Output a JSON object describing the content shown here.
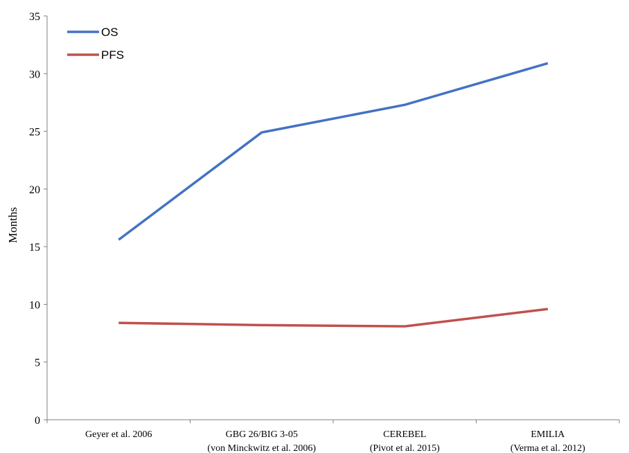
{
  "chart_data": {
    "type": "line",
    "categories": [
      [
        "Geyer et al. 2006"
      ],
      [
        "GBG 26/BIG 3-05",
        "(von Minckwitz et al. 2006)"
      ],
      [
        "CEREBEL",
        "(Pivot et al. 2015)"
      ],
      [
        "EMILIA",
        "(Verma et al. 2012)"
      ]
    ],
    "series": [
      {
        "name": "OS",
        "values": [
          15.6,
          24.9,
          27.3,
          30.9
        ],
        "color": "#4472C4"
      },
      {
        "name": "PFS",
        "values": [
          8.4,
          8.2,
          8.1,
          9.6
        ],
        "color": "#C0504D"
      }
    ],
    "ylabel": "Months",
    "ylim": [
      0,
      35
    ],
    "yticks": [
      0,
      5,
      10,
      15,
      20,
      25,
      30,
      35
    ],
    "legend_position": "top-left",
    "grid": false
  }
}
